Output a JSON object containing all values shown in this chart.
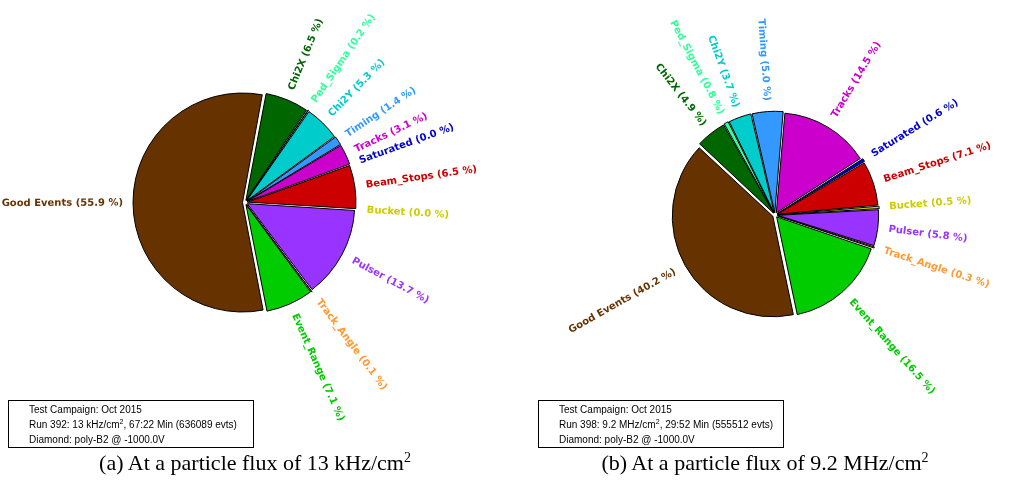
{
  "chart_data": [
    {
      "type": "pie",
      "title": "(a) At a particle flux of 13 kHz/cm$^{2}$",
      "categories": [
        "Chi2X",
        "Ped_Sigma",
        "Chi2Y",
        "Timing",
        "Tracks",
        "Saturated",
        "Beam_Stops",
        "Bucket",
        "Pulser",
        "Track_Angle",
        "Event_Range",
        "Good Events"
      ],
      "values": [
        6.5,
        0.2,
        5.3,
        1.4,
        3.1,
        0.0,
        6.5,
        0.0,
        13.7,
        0.1,
        7.1,
        55.9
      ],
      "value_labels": [
        "(6.5 %)",
        "(0.2 %)",
        "(5.3 %)",
        "(1.4 %)",
        "(3.1 %)",
        "(0.0 %)",
        "(6.5 %)",
        "(0.0 %)",
        "(13.7 %)",
        "(0.1 %)",
        "(7.1 %)",
        "(55.9 %)"
      ],
      "colors": [
        "#006600",
        "#33ff99",
        "#00cccc",
        "#3399ff",
        "#cc00cc",
        "#0000cc",
        "#cc0000",
        "#cccc00",
        "#9933ff",
        "#ff9933",
        "#00cc00",
        "#663300"
      ],
      "annotations": [
        "Test Campaign: Oct 2015",
        "Run 392:  13 kHz/cm$^{2}$, 67:22 Min (636089 evts)",
        "Diamond: poly-B2 @ -1000.0V"
      ]
    },
    {
      "type": "pie",
      "title": "(b) At a particle flux of 9.2 MHz/cm$^{2}$",
      "categories": [
        "Chi2X",
        "Ped_Sigma",
        "Chi2Y",
        "Timing",
        "Tracks",
        "Saturated",
        "Beam_Stops",
        "Bucket",
        "Pulser",
        "Track_Angle",
        "Event_Range",
        "Good Events"
      ],
      "values": [
        4.9,
        0.8,
        3.7,
        5.0,
        14.5,
        0.6,
        7.1,
        0.5,
        5.8,
        0.3,
        16.5,
        40.2
      ],
      "value_labels": [
        "(4.9 %)",
        "(0.8 %)",
        "(3.7 %)",
        "(5.0 %)",
        "(14.5 %)",
        "(0.6 %)",
        "(7.1 %)",
        "(0.5 %)",
        "(5.8 %)",
        "(0.3 %)",
        "(16.5 %)",
        "(40.2 %)"
      ],
      "colors": [
        "#006600",
        "#33ff99",
        "#00cccc",
        "#3399ff",
        "#cc00cc",
        "#0000cc",
        "#cc0000",
        "#cccc00",
        "#9933ff",
        "#ff9933",
        "#00cc00",
        "#663300"
      ],
      "annotations": [
        "Test Campaign: Oct 2015",
        "Run 398: 9.2 MHz/cm$^{2}$, 29:52 Min (555512 evts)",
        "Diamond: poly-B2 @ -1000.0V"
      ]
    }
  ]
}
